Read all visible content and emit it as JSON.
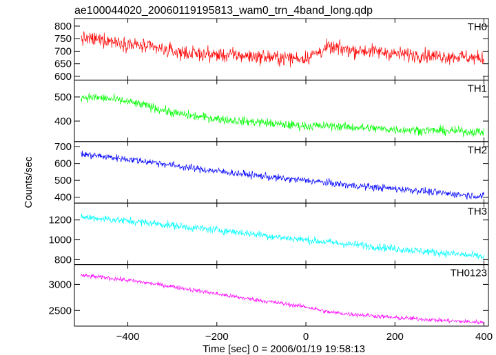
{
  "chart_data": {
    "type": "line",
    "title": "ae100044020_20060119195813_wam0_trn_4band_long.qdp",
    "xlabel": "Time [sec] 0 = 2006/01/19 19:58:13",
    "ylabel": "Counts/sec",
    "xlim": [
      -520,
      410
    ],
    "xticks": [
      -400,
      -200,
      0,
      200,
      400
    ],
    "x_step_sec": 1,
    "grid": false,
    "panels": [
      {
        "name": "TH0",
        "color": "#ff0000",
        "ylim": [
          585,
          830
        ],
        "yticks": [
          600,
          650,
          700,
          750,
          800
        ],
        "noise": 40,
        "x": [
          -505,
          -450,
          -400,
          -350,
          -300,
          -250,
          -200,
          -150,
          -100,
          -50,
          0,
          50,
          100,
          150,
          200,
          250,
          300,
          350,
          400
        ],
        "y": [
          750,
          745,
          730,
          715,
          700,
          690,
          685,
          683,
          677,
          673,
          672,
          715,
          705,
          700,
          690,
          685,
          680,
          678,
          670
        ]
      },
      {
        "name": "TH1",
        "color": "#00ff00",
        "ylim": [
          315,
          570
        ],
        "yticks": [
          400,
          500
        ],
        "noise": 26,
        "x": [
          -505,
          -450,
          -400,
          -350,
          -300,
          -250,
          -200,
          -150,
          -100,
          -50,
          0,
          50,
          100,
          150,
          200,
          250,
          300,
          350,
          400
        ],
        "y": [
          500,
          495,
          480,
          460,
          435,
          420,
          410,
          400,
          395,
          385,
          380,
          380,
          375,
          370,
          365,
          362,
          360,
          358,
          355
        ]
      },
      {
        "name": "TH2",
        "color": "#0000ff",
        "ylim": [
          365,
          730
        ],
        "yticks": [
          400,
          500,
          600,
          700
        ],
        "noise": 30,
        "x": [
          -505,
          -450,
          -400,
          -350,
          -300,
          -250,
          -200,
          -150,
          -100,
          -50,
          0,
          50,
          100,
          150,
          200,
          250,
          300,
          350,
          400
        ],
        "y": [
          655,
          640,
          625,
          610,
          590,
          570,
          555,
          540,
          525,
          510,
          500,
          485,
          470,
          460,
          450,
          440,
          425,
          415,
          405
        ]
      },
      {
        "name": "TH3",
        "color": "#00ffff",
        "ylim": [
          750,
          1370
        ],
        "yticks": [
          800,
          1000,
          1200
        ],
        "noise": 55,
        "x": [
          -505,
          -450,
          -400,
          -350,
          -300,
          -250,
          -200,
          -150,
          -100,
          -50,
          0,
          50,
          100,
          150,
          200,
          250,
          300,
          350,
          400
        ],
        "y": [
          1230,
          1210,
          1190,
          1170,
          1145,
          1120,
          1100,
          1075,
          1050,
          1020,
          1000,
          975,
          955,
          935,
          910,
          890,
          870,
          850,
          830
        ]
      },
      {
        "name": "TH0123",
        "color": "#ff00ff",
        "ylim": [
          2200,
          3380
        ],
        "yticks": [
          2500,
          3000
        ],
        "noise": 60,
        "x": [
          -505,
          -450,
          -400,
          -350,
          -300,
          -250,
          -200,
          -150,
          -100,
          -50,
          0,
          50,
          100,
          150,
          200,
          250,
          300,
          350,
          400
        ],
        "y": [
          3170,
          3130,
          3080,
          3020,
          2960,
          2890,
          2820,
          2750,
          2690,
          2630,
          2570,
          2470,
          2430,
          2400,
          2360,
          2340,
          2310,
          2290,
          2270
        ]
      }
    ]
  }
}
